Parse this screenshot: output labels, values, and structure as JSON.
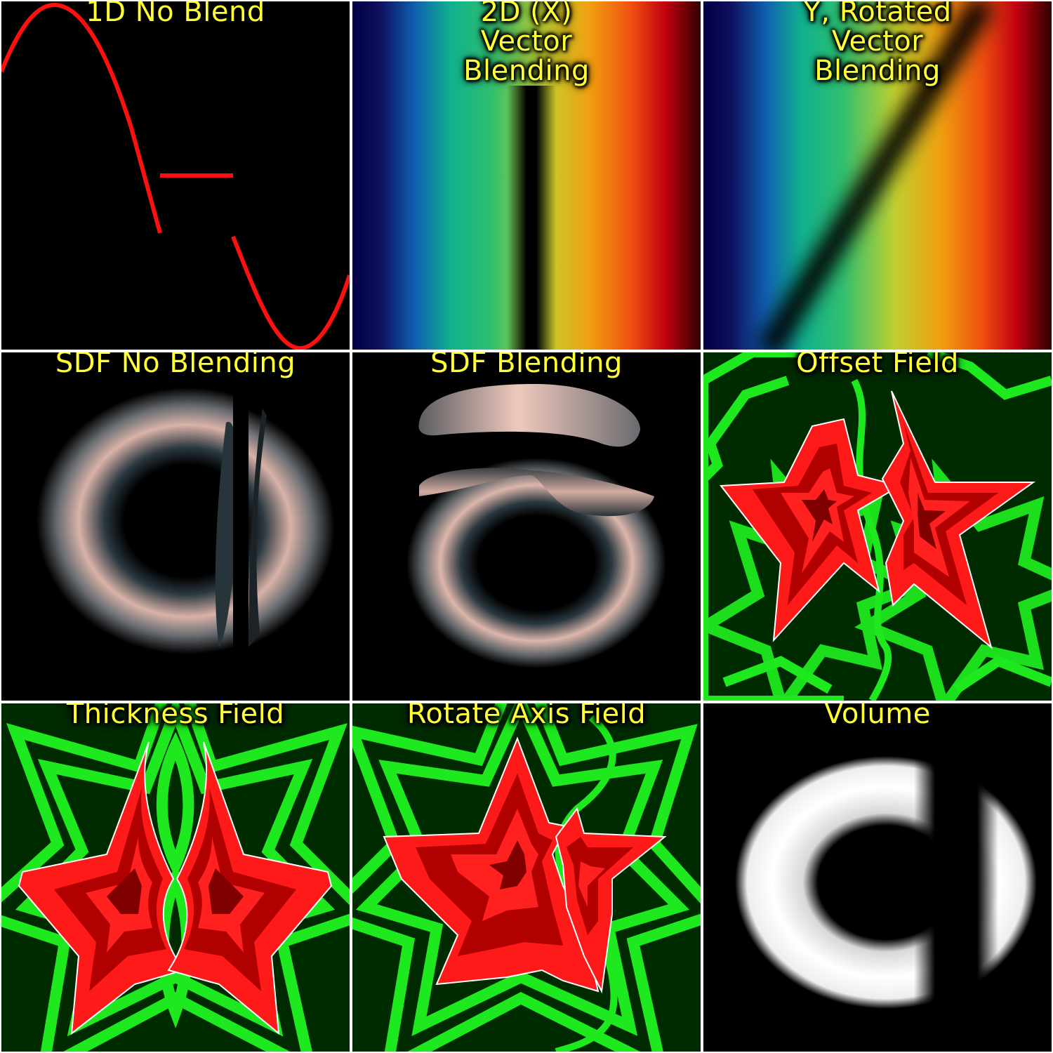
{
  "panels": [
    {
      "title": "1D No Blend"
    },
    {
      "title": "2D (X)\nVector\nBlending"
    },
    {
      "title": "Y, Rotated\nVector\nBlending"
    },
    {
      "title": "SDF No Blending"
    },
    {
      "title": "SDF Blending"
    },
    {
      "title": "Offset Field"
    },
    {
      "title": "Thickness Field"
    },
    {
      "title": "Rotate Axis Field"
    },
    {
      "title": "Volume"
    }
  ],
  "colors": {
    "title": "#ffff33",
    "curve": "#ff1010",
    "field_green": "#1ee81e",
    "field_red": "#ff1a1a",
    "torus": "#e8c3b8",
    "volume": "#ffffff"
  }
}
